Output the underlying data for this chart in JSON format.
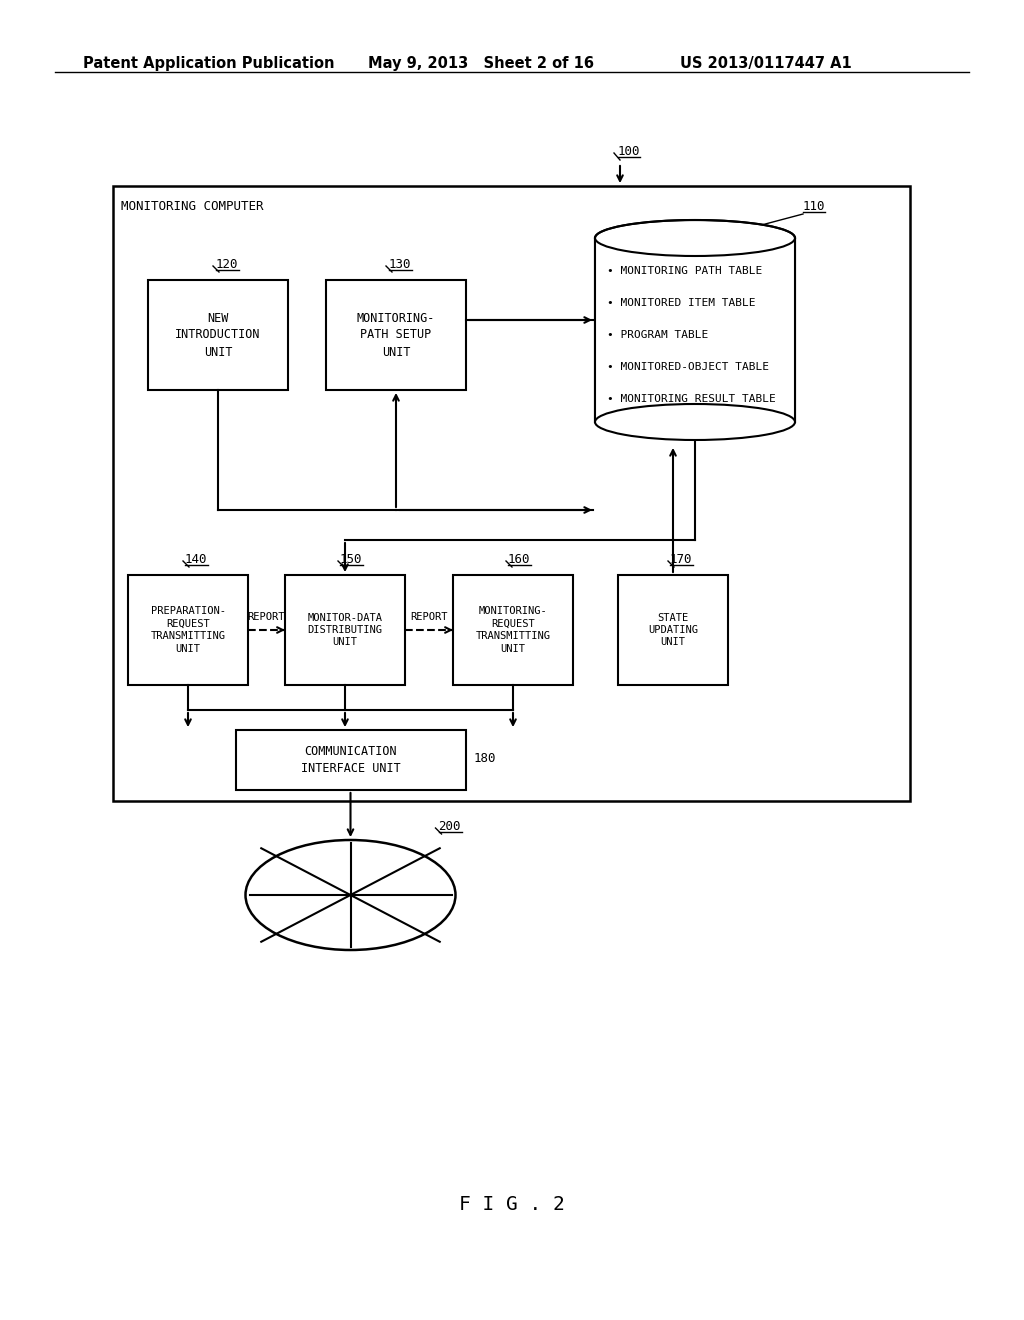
{
  "bg_color": "#ffffff",
  "header_left": "Patent Application Publication",
  "header_mid": "May 9, 2013   Sheet 2 of 16",
  "header_right": "US 2013/0117447 A1",
  "figure_label": "F I G . 2",
  "main_box_label": "MONITORING COMPUTER",
  "label_100": "100",
  "label_110": "110",
  "label_120": "120",
  "label_130": "130",
  "label_140": "140",
  "label_150": "150",
  "label_160": "160",
  "label_170": "170",
  "label_180": "180",
  "label_200": "200",
  "box120_text": "NEW\nINTRODUCTION\nUNIT",
  "box130_text": "MONITORING-\nPATH SETUP\nUNIT",
  "box140_text": "PREPARATION-\nREQUEST\nTRANSMITTING\nUNIT",
  "box150_text": "MONITOR-DATA\nDISTRIBUTING\nUNIT",
  "box160_text": "MONITORING-\nREQUEST\nTRANSMITTING\nUNIT",
  "box170_text": "STATE\nUPDATING\nUNIT",
  "box180_text": "COMMUNICATION\nINTERFACE UNIT",
  "db_items": [
    "• MONITORING PATH TABLE",
    "• MONITORED ITEM TABLE",
    "• PROGRAM TABLE",
    "• MONITORED-OBJECT TABLE",
    "• MONITORING RESULT TABLE"
  ],
  "report_label1": "REPORT",
  "report_label2": "REPORT"
}
